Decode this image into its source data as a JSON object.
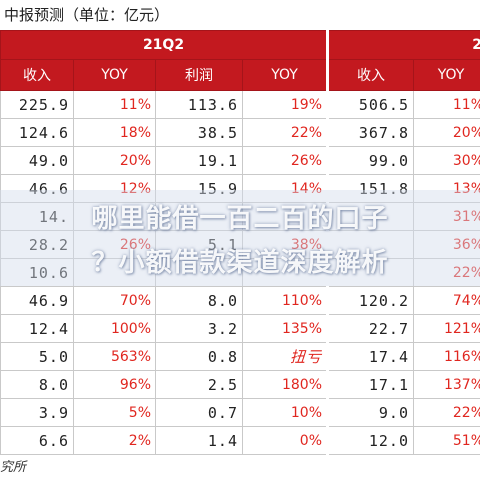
{
  "title": "中报预测（单位：亿元）",
  "periods": [
    "21Q2",
    "2"
  ],
  "headers": [
    "收入",
    "YOY",
    "利润",
    "YOY",
    "收入",
    "YOY"
  ],
  "rows": [
    [
      "225.9",
      "11%",
      "113.6",
      "19%",
      "506.5",
      "11%"
    ],
    [
      "124.6",
      "18%",
      "38.5",
      "22%",
      "367.8",
      "20%"
    ],
    [
      "49.0",
      "20%",
      "19.1",
      "26%",
      "99.0",
      "30%"
    ],
    [
      "46.6",
      "12%",
      "15.9",
      "14%",
      "151.8",
      "13%"
    ],
    [
      "14.",
      "",
      "",
      "",
      "",
      "31%"
    ],
    [
      "28.2",
      "26%",
      "5.1",
      "38%",
      "",
      "36%"
    ],
    [
      "10.6",
      "",
      "",
      "",
      "",
      "22%"
    ],
    [
      "46.9",
      "70%",
      "8.0",
      "110%",
      "120.2",
      "74%"
    ],
    [
      "12.4",
      "100%",
      "3.2",
      "135%",
      "22.7",
      "121%"
    ],
    [
      "5.0",
      "563%",
      "0.8",
      "扭亏",
      "17.4",
      "116%"
    ],
    [
      "8.0",
      "96%",
      "2.5",
      "180%",
      "17.1",
      "137%"
    ],
    [
      "3.9",
      "5%",
      "0.7",
      "10%",
      "9.0",
      "22%"
    ],
    [
      "6.6",
      "2%",
      "1.4",
      "0%",
      "12.0",
      "51%"
    ]
  ],
  "footer": "究所",
  "watermark": {
    "line1": "哪里能借一百二百的口子",
    "line2": "？小额借款渠道深度解析"
  }
}
